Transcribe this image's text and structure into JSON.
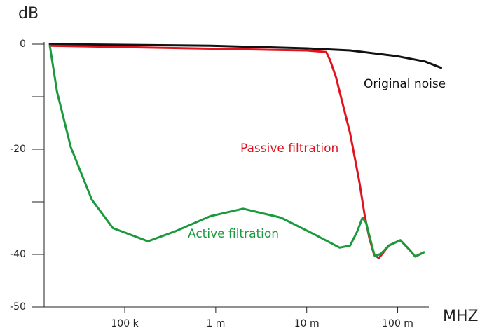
{
  "chart_data": {
    "type": "line",
    "ylabel": "dB",
    "xlabel": "MHZ",
    "log_x": true,
    "xlim": [
      13000,
      220000000
    ],
    "xticks": [
      {
        "value": 100000,
        "label": "100 k"
      },
      {
        "value": 1000000,
        "label": "1 m"
      },
      {
        "value": 10000000,
        "label": "10 m"
      },
      {
        "value": 100000000,
        "label": "100 m"
      }
    ],
    "ylim": [
      -50,
      0
    ],
    "yticks": [
      0,
      -20,
      -40,
      -50
    ],
    "y_minor_ticks": [
      -10,
      -30
    ],
    "series": [
      {
        "name": "Original noise",
        "color": "#111111",
        "x": [
          15000,
          880000,
          10000000,
          30000000,
          100000000,
          200000000,
          300000000
        ],
        "values": [
          0,
          -0.3,
          -0.8,
          -1.2,
          -2.3,
          -3.3,
          -4.5
        ]
      },
      {
        "name": "Passive filtration",
        "color": "#e0141e",
        "x": [
          15000,
          10000000,
          16400000,
          18000000,
          21000000,
          30000000,
          38000000,
          43500000,
          49000000,
          55000000,
          62000000,
          80000000,
          107000000,
          133000000,
          156000000,
          194000000
        ],
        "values": [
          -0.3,
          -1.2,
          -1.5,
          -3,
          -6.3,
          -17,
          -26.3,
          -32.7,
          -37,
          -40,
          -40.7,
          -38.3,
          -37.3,
          -39,
          -40.4,
          -39.6
        ]
      },
      {
        "name": "Active filtration",
        "color": "#1a9a3c",
        "x": [
          15000,
          18000,
          25500,
          43500,
          74000,
          180000,
          360000,
          880000,
          2000000,
          5200000,
          12500000,
          23000000,
          30000000,
          36000000,
          41000000,
          45000000,
          52000000,
          56000000,
          65000000,
          80000000,
          107000000,
          133000000,
          156000000,
          194000000
        ],
        "values": [
          -0.3,
          -9,
          -19.6,
          -29.6,
          -35,
          -37.5,
          -35.6,
          -32.7,
          -31.3,
          -33,
          -36.3,
          -38.7,
          -38.3,
          -35.6,
          -33,
          -34,
          -38.3,
          -40.3,
          -39.9,
          -38.3,
          -37.3,
          -39,
          -40.4,
          -39.6
        ]
      }
    ],
    "annotation_positions": null
  }
}
